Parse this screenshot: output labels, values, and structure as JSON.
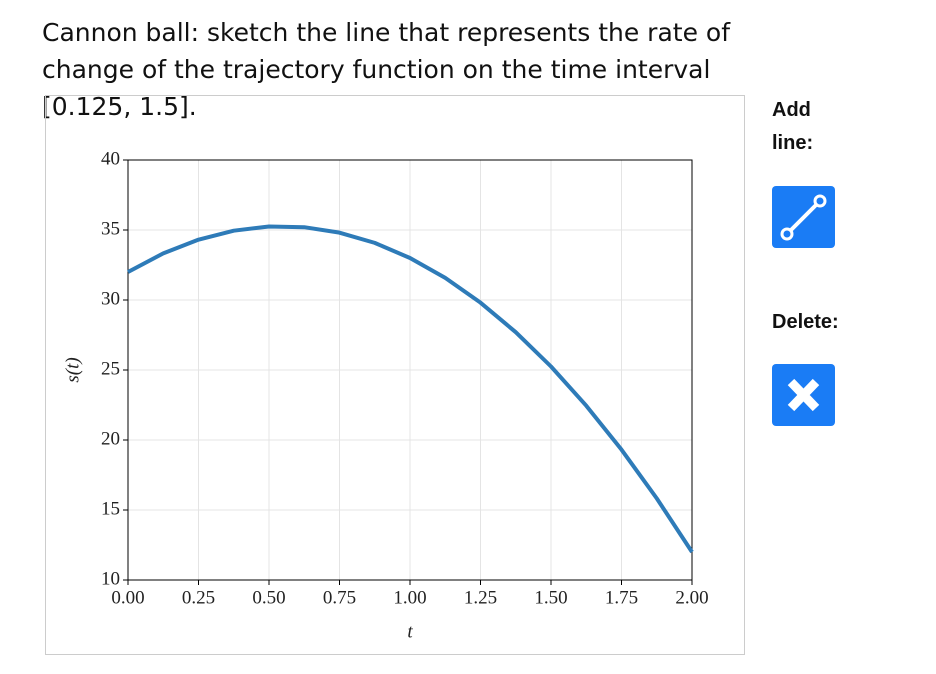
{
  "question": "Cannon ball: sketch the line that represents the rate of change of the trajectory function on the time interval [0.125, 1.5].",
  "tools": {
    "add_label": "Add line:",
    "delete_label": "Delete:"
  },
  "chart_data": {
    "type": "line",
    "x_label": "t",
    "y_label": "s(t)",
    "x": [
      0,
      0.125,
      0.25,
      0.375,
      0.5,
      0.625,
      0.75,
      0.875,
      1,
      1.125,
      1.25,
      1.375,
      1.5,
      1.625,
      1.75,
      1.875,
      2
    ],
    "series": [
      {
        "name": "s(t)",
        "color": "#2e7bb8",
        "values": [
          32,
          33.33,
          34.31,
          34.95,
          35.25,
          35.2,
          34.81,
          34.08,
          33,
          31.58,
          29.81,
          27.7,
          25.25,
          22.45,
          19.31,
          15.83,
          12
        ]
      }
    ],
    "xlim": [
      0,
      2
    ],
    "ylim": [
      10,
      40
    ],
    "xticks": [
      {
        "value": 0,
        "label": "0.00"
      },
      {
        "value": 0.25,
        "label": "0.25"
      },
      {
        "value": 0.5,
        "label": "0.50"
      },
      {
        "value": 0.75,
        "label": "0.75"
      },
      {
        "value": 1,
        "label": "1.00"
      },
      {
        "value": 1.25,
        "label": "1.25"
      },
      {
        "value": 1.5,
        "label": "1.50"
      },
      {
        "value": 1.75,
        "label": "1.75"
      },
      {
        "value": 2,
        "label": "2.00"
      }
    ],
    "yticks": [
      10,
      15,
      20,
      25,
      30,
      35,
      40
    ],
    "grid": true
  }
}
